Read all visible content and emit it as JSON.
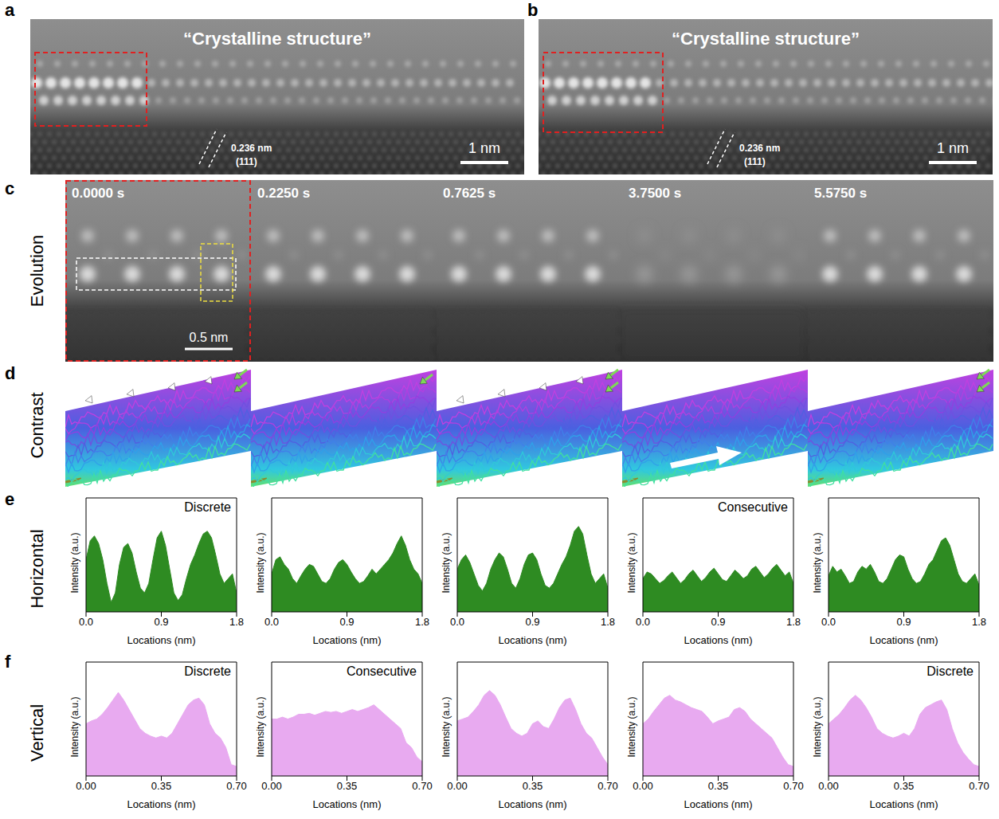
{
  "figure": {
    "panel_a": {
      "letter": "a",
      "title": "“Crystalline structure”",
      "spacing": "0.236 nm",
      "plane": "(111)",
      "scale_bar": "1 nm"
    },
    "panel_b": {
      "letter": "b",
      "title": "“Crystalline structure”",
      "spacing": "0.236 nm",
      "plane": "(111)",
      "scale_bar": "1 nm"
    },
    "panel_c": {
      "letter": "c",
      "row_label": "Evolution",
      "times": [
        "0.0000 s",
        "0.2250 s",
        "0.7625 s",
        "3.7500 s",
        "5.5750 s"
      ],
      "scale_bar": "0.5 nm"
    },
    "panel_d": {
      "letter": "d",
      "row_label": "Contrast"
    },
    "panel_e": {
      "letter": "e",
      "row_label": "Horizontal"
    },
    "panel_f": {
      "letter": "f",
      "row_label": "Vertical"
    }
  },
  "chart_data": [
    {
      "type": "area",
      "annotation": "Discrete",
      "x_label": "Locations (nm)",
      "y_label": "Intensity (a.u.)",
      "color": "#2e8b22",
      "tick_labels": "x",
      "xlim": [
        0,
        1.8
      ],
      "xticks": [
        {
          "value": 0,
          "label": "0.0"
        },
        0.9,
        1.8
      ],
      "ylim": [
        0,
        1.2
      ],
      "x": [
        0,
        0.05,
        0.1,
        0.15,
        0.2,
        0.25,
        0.3,
        0.35,
        0.4,
        0.45,
        0.5,
        0.55,
        0.6,
        0.65,
        0.7,
        0.75,
        0.8,
        0.85,
        0.9,
        0.95,
        1,
        1.05,
        1.1,
        1.15,
        1.2,
        1.25,
        1.3,
        1.35,
        1.4,
        1.45,
        1.5,
        1.55,
        1.6,
        1.65,
        1.7,
        1.75,
        1.8
      ],
      "values": [
        0.55,
        0.75,
        0.8,
        0.72,
        0.55,
        0.3,
        0.1,
        0.2,
        0.5,
        0.68,
        0.72,
        0.62,
        0.42,
        0.25,
        0.2,
        0.3,
        0.55,
        0.78,
        0.85,
        0.7,
        0.45,
        0.2,
        0.12,
        0.18,
        0.35,
        0.5,
        0.6,
        0.72,
        0.82,
        0.85,
        0.78,
        0.6,
        0.4,
        0.3,
        0.35,
        0.4,
        0.2
      ]
    },
    {
      "type": "area",
      "x_label": "Locations (nm)",
      "y_label": "Intensity (a.u.)",
      "color": "#2e8b22",
      "tick_labels": "x",
      "xlim": [
        0,
        1.8
      ],
      "xticks": [
        {
          "value": 0,
          "label": "0.0"
        },
        0.9,
        1.8
      ],
      "ylim": [
        0,
        1.2
      ],
      "x": [
        0,
        0.05,
        0.1,
        0.15,
        0.2,
        0.25,
        0.3,
        0.35,
        0.4,
        0.45,
        0.5,
        0.55,
        0.6,
        0.65,
        0.7,
        0.75,
        0.8,
        0.85,
        0.9,
        0.95,
        1,
        1.05,
        1.1,
        1.15,
        1.2,
        1.25,
        1.3,
        1.35,
        1.4,
        1.45,
        1.5,
        1.55,
        1.6,
        1.65,
        1.7,
        1.75,
        1.8
      ],
      "values": [
        0.4,
        0.55,
        0.58,
        0.5,
        0.45,
        0.35,
        0.3,
        0.38,
        0.45,
        0.5,
        0.48,
        0.4,
        0.32,
        0.3,
        0.35,
        0.45,
        0.52,
        0.55,
        0.5,
        0.42,
        0.35,
        0.3,
        0.32,
        0.38,
        0.45,
        0.4,
        0.45,
        0.5,
        0.55,
        0.62,
        0.72,
        0.8,
        0.7,
        0.55,
        0.45,
        0.4,
        0.3
      ]
    },
    {
      "type": "area",
      "x_label": "Locations (nm)",
      "y_label": "Intensity (a.u.)",
      "color": "#2e8b22",
      "tick_labels": "x",
      "xlim": [
        0,
        1.8
      ],
      "xticks": [
        {
          "value": 0,
          "label": "0.0"
        },
        0.9,
        1.8
      ],
      "ylim": [
        0,
        1.2
      ],
      "x": [
        0,
        0.05,
        0.1,
        0.15,
        0.2,
        0.25,
        0.3,
        0.35,
        0.4,
        0.45,
        0.5,
        0.55,
        0.6,
        0.65,
        0.7,
        0.75,
        0.8,
        0.85,
        0.9,
        0.95,
        1,
        1.05,
        1.1,
        1.15,
        1.2,
        1.25,
        1.3,
        1.35,
        1.4,
        1.45,
        1.5,
        1.55,
        1.6,
        1.65,
        1.7,
        1.75,
        1.8
      ],
      "values": [
        0.45,
        0.55,
        0.6,
        0.52,
        0.4,
        0.28,
        0.22,
        0.3,
        0.45,
        0.55,
        0.62,
        0.58,
        0.45,
        0.3,
        0.25,
        0.35,
        0.5,
        0.6,
        0.62,
        0.55,
        0.4,
        0.28,
        0.25,
        0.3,
        0.4,
        0.5,
        0.58,
        0.7,
        0.85,
        0.9,
        0.82,
        0.6,
        0.4,
        0.3,
        0.35,
        0.4,
        0.25
      ]
    },
    {
      "type": "area",
      "annotation": "Consecutive",
      "x_label": "Locations (nm)",
      "y_label": "Intensity (a.u.)",
      "color": "#2e8b22",
      "tick_labels": "x",
      "xlim": [
        0,
        1.8
      ],
      "xticks": [
        {
          "value": 0,
          "label": "0.0"
        },
        0.9,
        1.8
      ],
      "ylim": [
        0,
        1.2
      ],
      "x": [
        0,
        0.05,
        0.1,
        0.15,
        0.2,
        0.25,
        0.3,
        0.35,
        0.4,
        0.45,
        0.5,
        0.55,
        0.6,
        0.65,
        0.7,
        0.75,
        0.8,
        0.85,
        0.9,
        0.95,
        1,
        1.05,
        1.1,
        1.15,
        1.2,
        1.25,
        1.3,
        1.35,
        1.4,
        1.45,
        1.5,
        1.55,
        1.6,
        1.65,
        1.7,
        1.75,
        1.8
      ],
      "values": [
        0.35,
        0.42,
        0.4,
        0.35,
        0.3,
        0.33,
        0.38,
        0.42,
        0.36,
        0.3,
        0.34,
        0.4,
        0.44,
        0.38,
        0.32,
        0.36,
        0.42,
        0.46,
        0.4,
        0.34,
        0.32,
        0.38,
        0.44,
        0.4,
        0.35,
        0.38,
        0.45,
        0.48,
        0.42,
        0.36,
        0.4,
        0.46,
        0.5,
        0.44,
        0.38,
        0.42,
        0.3
      ]
    },
    {
      "type": "area",
      "x_label": "Locations (nm)",
      "y_label": "Intensity (a.u.)",
      "color": "#2e8b22",
      "tick_labels": "x",
      "xlim": [
        0,
        1.8
      ],
      "xticks": [
        {
          "value": 0,
          "label": "0.0"
        },
        0.9,
        1.8
      ],
      "ylim": [
        0,
        1.2
      ],
      "x": [
        0,
        0.05,
        0.1,
        0.15,
        0.2,
        0.25,
        0.3,
        0.35,
        0.4,
        0.45,
        0.5,
        0.55,
        0.6,
        0.65,
        0.7,
        0.75,
        0.8,
        0.85,
        0.9,
        0.95,
        1,
        1.05,
        1.1,
        1.15,
        1.2,
        1.25,
        1.3,
        1.35,
        1.4,
        1.45,
        1.5,
        1.55,
        1.6,
        1.65,
        1.7,
        1.75,
        1.8
      ],
      "values": [
        0.38,
        0.48,
        0.42,
        0.45,
        0.38,
        0.3,
        0.32,
        0.42,
        0.48,
        0.45,
        0.5,
        0.42,
        0.32,
        0.3,
        0.35,
        0.45,
        0.55,
        0.6,
        0.58,
        0.45,
        0.35,
        0.3,
        0.32,
        0.4,
        0.5,
        0.55,
        0.65,
        0.75,
        0.78,
        0.7,
        0.55,
        0.4,
        0.32,
        0.3,
        0.35,
        0.4,
        0.28
      ]
    },
    {
      "type": "area",
      "annotation": "Discrete",
      "x_label": "Locations (nm)",
      "y_label": "Intensity (a.u.)",
      "color": "#e8aaf0",
      "tick_labels": "x",
      "xlim": [
        0,
        0.7
      ],
      "xticks": [
        {
          "value": 0,
          "label": "0.00"
        },
        0.35,
        {
          "value": 0.7,
          "label": "0.70"
        }
      ],
      "ylim": [
        0,
        1.2
      ],
      "x": [
        0,
        0.025,
        0.05,
        0.075,
        0.1,
        0.125,
        0.15,
        0.175,
        0.2,
        0.225,
        0.25,
        0.275,
        0.3,
        0.325,
        0.35,
        0.375,
        0.4,
        0.425,
        0.45,
        0.475,
        0.5,
        0.525,
        0.55,
        0.575,
        0.6,
        0.625,
        0.65,
        0.675,
        0.7
      ],
      "values": [
        0.55,
        0.58,
        0.6,
        0.65,
        0.72,
        0.8,
        0.88,
        0.8,
        0.7,
        0.6,
        0.5,
        0.45,
        0.42,
        0.4,
        0.42,
        0.4,
        0.45,
        0.55,
        0.65,
        0.75,
        0.8,
        0.82,
        0.75,
        0.55,
        0.45,
        0.4,
        0.3,
        0.12,
        0.1
      ]
    },
    {
      "type": "area",
      "annotation": "Consecutive",
      "x_label": "Locations (nm)",
      "y_label": "Intensity (a.u.)",
      "color": "#e8aaf0",
      "tick_labels": "x",
      "xlim": [
        0,
        0.7
      ],
      "xticks": [
        {
          "value": 0,
          "label": "0.00"
        },
        0.35,
        {
          "value": 0.7,
          "label": "0.70"
        }
      ],
      "ylim": [
        0,
        1.2
      ],
      "x": [
        0,
        0.025,
        0.05,
        0.075,
        0.1,
        0.125,
        0.15,
        0.175,
        0.2,
        0.225,
        0.25,
        0.275,
        0.3,
        0.325,
        0.35,
        0.375,
        0.4,
        0.425,
        0.45,
        0.475,
        0.5,
        0.525,
        0.55,
        0.575,
        0.6,
        0.625,
        0.65,
        0.675,
        0.7
      ],
      "values": [
        0.6,
        0.6,
        0.62,
        0.6,
        0.62,
        0.65,
        0.65,
        0.66,
        0.64,
        0.66,
        0.68,
        0.67,
        0.68,
        0.66,
        0.68,
        0.7,
        0.68,
        0.7,
        0.72,
        0.75,
        0.7,
        0.65,
        0.6,
        0.55,
        0.5,
        0.35,
        0.3,
        0.2,
        0.15
      ]
    },
    {
      "type": "area",
      "x_label": "Locations (nm)",
      "y_label": "Intensity (a.u.)",
      "color": "#e8aaf0",
      "tick_labels": "x",
      "xlim": [
        0,
        0.7
      ],
      "xticks": [
        {
          "value": 0,
          "label": "0.00"
        },
        0.35,
        {
          "value": 0.7,
          "label": "0.70"
        }
      ],
      "ylim": [
        0,
        1.2
      ],
      "x": [
        0,
        0.025,
        0.05,
        0.075,
        0.1,
        0.125,
        0.15,
        0.175,
        0.2,
        0.225,
        0.25,
        0.275,
        0.3,
        0.325,
        0.35,
        0.375,
        0.4,
        0.425,
        0.45,
        0.475,
        0.5,
        0.525,
        0.55,
        0.575,
        0.6,
        0.625,
        0.65,
        0.675,
        0.7
      ],
      "values": [
        0.58,
        0.6,
        0.62,
        0.68,
        0.75,
        0.85,
        0.9,
        0.85,
        0.75,
        0.62,
        0.5,
        0.45,
        0.42,
        0.45,
        0.55,
        0.58,
        0.52,
        0.5,
        0.6,
        0.72,
        0.8,
        0.82,
        0.7,
        0.55,
        0.45,
        0.4,
        0.3,
        0.2,
        0.12
      ]
    },
    {
      "type": "area",
      "x_label": "Locations (nm)",
      "y_label": "Intensity (a.u.)",
      "color": "#e8aaf0",
      "tick_labels": "x",
      "xlim": [
        0,
        0.7
      ],
      "xticks": [
        {
          "value": 0,
          "label": "0.00"
        },
        0.35,
        {
          "value": 0.7,
          "label": "0.70"
        }
      ],
      "ylim": [
        0,
        1.2
      ],
      "x": [
        0,
        0.025,
        0.05,
        0.075,
        0.1,
        0.125,
        0.15,
        0.175,
        0.2,
        0.225,
        0.25,
        0.275,
        0.3,
        0.325,
        0.35,
        0.375,
        0.4,
        0.425,
        0.45,
        0.475,
        0.5,
        0.525,
        0.55,
        0.575,
        0.6,
        0.625,
        0.65,
        0.675,
        0.7
      ],
      "values": [
        0.55,
        0.6,
        0.68,
        0.75,
        0.82,
        0.85,
        0.8,
        0.78,
        0.75,
        0.72,
        0.7,
        0.68,
        0.62,
        0.55,
        0.58,
        0.6,
        0.62,
        0.7,
        0.72,
        0.68,
        0.6,
        0.55,
        0.5,
        0.45,
        0.4,
        0.3,
        0.2,
        0.12,
        0.1
      ]
    },
    {
      "type": "area",
      "annotation": "Discrete",
      "x_label": "Locations (nm)",
      "y_label": "Intensity (a.u.)",
      "color": "#e8aaf0",
      "tick_labels": "x",
      "xlim": [
        0,
        0.7
      ],
      "xticks": [
        {
          "value": 0,
          "label": "0.00"
        },
        0.35,
        {
          "value": 0.7,
          "label": "0.70"
        }
      ],
      "ylim": [
        0,
        1.2
      ],
      "x": [
        0,
        0.025,
        0.05,
        0.075,
        0.1,
        0.125,
        0.15,
        0.175,
        0.2,
        0.225,
        0.25,
        0.275,
        0.3,
        0.325,
        0.35,
        0.375,
        0.4,
        0.425,
        0.45,
        0.475,
        0.5,
        0.525,
        0.55,
        0.575,
        0.6,
        0.625,
        0.65,
        0.675,
        0.7
      ],
      "values": [
        0.55,
        0.6,
        0.65,
        0.72,
        0.8,
        0.85,
        0.8,
        0.72,
        0.62,
        0.5,
        0.45,
        0.42,
        0.4,
        0.42,
        0.45,
        0.42,
        0.5,
        0.65,
        0.72,
        0.75,
        0.78,
        0.8,
        0.7,
        0.5,
        0.35,
        0.25,
        0.18,
        0.12,
        0.1
      ]
    }
  ]
}
